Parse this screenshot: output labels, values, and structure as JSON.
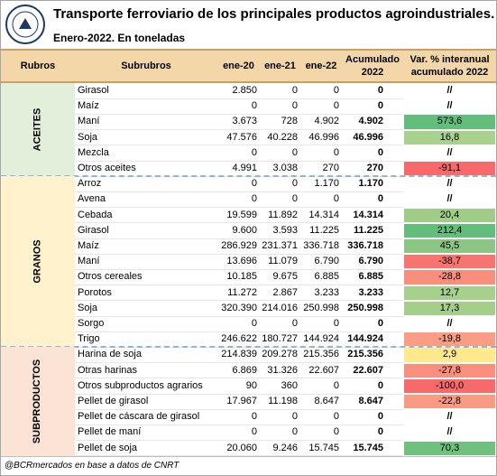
{
  "header": {
    "title": "Transporte ferroviario de los principales productos agroindustriales.",
    "subtitle": "Enero-2022. En toneladas"
  },
  "table": {
    "columns": [
      "Rubros",
      "Subrubros",
      "ene-20",
      "ene-21",
      "ene-22",
      "Acumulado\n2022",
      "Var. % interanual\nacumulado 2022"
    ],
    "groups": [
      {
        "name": "ACEITES",
        "color": "#e2efda",
        "rows": [
          [
            "Girasol",
            "2.850",
            "0",
            "0",
            "0",
            "//"
          ],
          [
            "Maíz",
            "0",
            "0",
            "0",
            "0",
            "//"
          ],
          [
            "Maní",
            "3.673",
            "728",
            "4.902",
            "4.902",
            "573,6"
          ],
          [
            "Soja",
            "47.576",
            "40.228",
            "46.996",
            "46.996",
            "16,8"
          ],
          [
            "Mezcla",
            "0",
            "0",
            "0",
            "0",
            "//"
          ],
          [
            "Otros aceites",
            "4.991",
            "3.038",
            "270",
            "270",
            "-91,1"
          ]
        ],
        "var_colors": [
          "#ffffff",
          "#ffffff",
          "#63be7b",
          "#a9d18e",
          "#ffffff",
          "#f8696b"
        ]
      },
      {
        "name": "GRANOS",
        "color": "#fff2cc",
        "rows": [
          [
            "Arroz",
            "0",
            "0",
            "1.170",
            "1.170",
            "//"
          ],
          [
            "Avena",
            "0",
            "0",
            "0",
            "0",
            "//"
          ],
          [
            "Cebada",
            "19.599",
            "11.892",
            "14.314",
            "14.314",
            "20,4"
          ],
          [
            "Girasol",
            "9.600",
            "3.593",
            "11.225",
            "11.225",
            "212,4"
          ],
          [
            "Maíz",
            "286.929",
            "231.371",
            "336.718",
            "336.718",
            "45,5"
          ],
          [
            "Maní",
            "13.696",
            "11.079",
            "6.790",
            "6.790",
            "-38,7"
          ],
          [
            "Otros cereales",
            "10.185",
            "9.675",
            "6.885",
            "6.885",
            "-28,8"
          ],
          [
            "Porotos",
            "11.272",
            "2.867",
            "3.233",
            "3.233",
            "12,7"
          ],
          [
            "Soja",
            "320.390",
            "214.016",
            "250.998",
            "250.998",
            "17,3"
          ],
          [
            "Sorgo",
            "0",
            "0",
            "0",
            "0",
            "//"
          ],
          [
            "Trigo",
            "246.622",
            "180.727",
            "144.924",
            "144.924",
            "-19,8"
          ]
        ],
        "var_colors": [
          "#ffffff",
          "#ffffff",
          "#9fcd87",
          "#63be7b",
          "#8cc683",
          "#f8746e",
          "#f98e7c",
          "#a6d08c",
          "#a4cf8b",
          "#ffffff",
          "#fa9d84"
        ]
      },
      {
        "name": "SUBPRODUCTOS",
        "color": "#fbe4d5",
        "rows": [
          [
            "Harina de soja",
            "214.839",
            "209.278",
            "215.356",
            "215.356",
            "2,9"
          ],
          [
            "Otras harinas",
            "6.869",
            "31.326",
            "22.607",
            "22.607",
            "-27,8"
          ],
          [
            "Otros subproductos agrarios",
            "90",
            "360",
            "0",
            "0",
            "-100,0"
          ],
          [
            "Pellet de girasol",
            "17.967",
            "11.198",
            "8.647",
            "8.647",
            "-22,8"
          ],
          [
            "Pellet de cáscara de girasol",
            "0",
            "0",
            "0",
            "0",
            "//"
          ],
          [
            "Pellet de maní",
            "0",
            "0",
            "0",
            "0",
            "//"
          ],
          [
            "Pellet de soja",
            "20.060",
            "9.246",
            "15.745",
            "15.745",
            "70,3"
          ]
        ],
        "var_colors": [
          "#ffe98a",
          "#f98f7d",
          "#f8696b",
          "#f99a82",
          "#ffffff",
          "#ffffff",
          "#6fc27e"
        ]
      }
    ]
  },
  "footer": {
    "source": "@BCRmercados en base a datos de CNRT"
  }
}
